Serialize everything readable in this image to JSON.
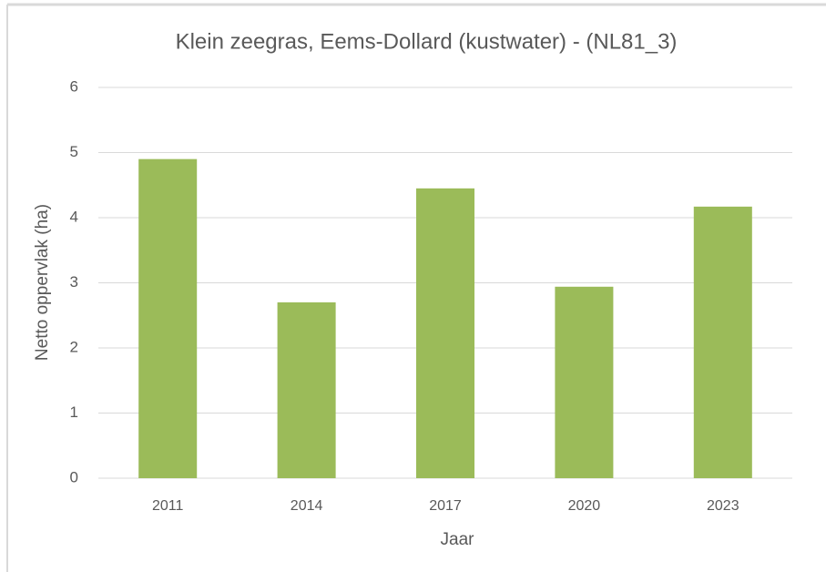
{
  "chart_data": {
    "type": "bar",
    "title": "Klein zeegras, Eems-Dollard (kustwater) - (NL81_3)",
    "x_label": "Jaar",
    "y_label": "Netto oppervlak (ha)",
    "categories": [
      "2011",
      "2014",
      "2017",
      "2020",
      "2023"
    ],
    "values": [
      4.9,
      2.7,
      4.45,
      2.94,
      4.17
    ],
    "color": "#9bbb59",
    "ylim": [
      0,
      6
    ],
    "yticks": [
      0,
      1,
      2,
      3,
      4,
      5,
      6
    ],
    "grid": true
  }
}
